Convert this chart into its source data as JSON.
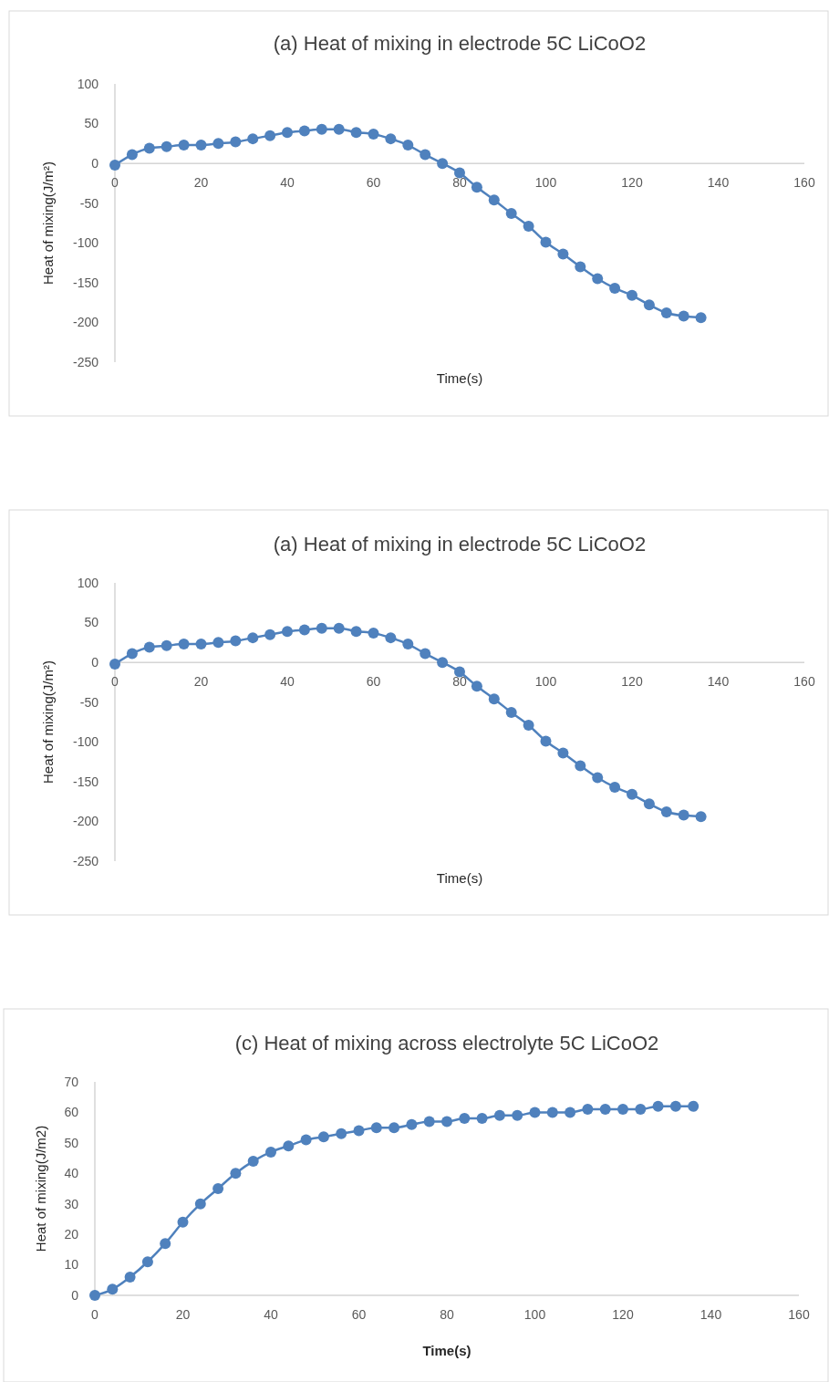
{
  "chart_data": [
    {
      "type": "line",
      "title": "(a) Heat of mixing in electrode 5C LiCoO2",
      "xlabel": "Time(s)",
      "ylabel": "Heat of mixing(J/m²)",
      "xlim": [
        0,
        160
      ],
      "xticks": [
        0,
        20,
        40,
        60,
        80,
        100,
        120,
        140,
        160
      ],
      "ylim": [
        -250,
        100
      ],
      "yticks": [
        -250,
        -200,
        -150,
        -100,
        -50,
        0,
        50,
        100
      ],
      "marker": "circle",
      "x": [
        0,
        4,
        8,
        12,
        16,
        20,
        24,
        28,
        32,
        36,
        40,
        44,
        48,
        52,
        56,
        60,
        64,
        68,
        72,
        76,
        80,
        84,
        88,
        92,
        96,
        100,
        104,
        108,
        112,
        116,
        120,
        124,
        128,
        132,
        136
      ],
      "series": [
        {
          "color": "#4f81bd",
          "values": [
            -2,
            11,
            19,
            21,
            23,
            23,
            25,
            27,
            31,
            35,
            39,
            41,
            43,
            43,
            39,
            37,
            31,
            23,
            11,
            0,
            -12,
            -30,
            -46,
            -63,
            -79,
            -99,
            -114,
            -130,
            -145,
            -157,
            -166,
            -178,
            -188,
            -192,
            -194
          ]
        }
      ]
    },
    {
      "type": "line",
      "title": "(a) Heat of mixing in electrode 5C LiCoO2",
      "xlabel": "Time(s)",
      "ylabel": "Heat of mixing(J/m²)",
      "xlim": [
        0,
        160
      ],
      "xticks": [
        0,
        20,
        40,
        60,
        80,
        100,
        120,
        140,
        160
      ],
      "ylim": [
        -250,
        100
      ],
      "yticks": [
        -250,
        -200,
        -150,
        -100,
        -50,
        0,
        50,
        100
      ],
      "marker": "circle",
      "x": [
        0,
        4,
        8,
        12,
        16,
        20,
        24,
        28,
        32,
        36,
        40,
        44,
        48,
        52,
        56,
        60,
        64,
        68,
        72,
        76,
        80,
        84,
        88,
        92,
        96,
        100,
        104,
        108,
        112,
        116,
        120,
        124,
        128,
        132,
        136
      ],
      "series": [
        {
          "color": "#4f81bd",
          "values": [
            -2,
            11,
            19,
            21,
            23,
            23,
            25,
            27,
            31,
            35,
            39,
            41,
            43,
            43,
            39,
            37,
            31,
            23,
            11,
            0,
            -12,
            -30,
            -46,
            -63,
            -79,
            -99,
            -114,
            -130,
            -145,
            -157,
            -166,
            -178,
            -188,
            -192,
            -194
          ]
        }
      ]
    },
    {
      "type": "line",
      "title": "(c) Heat of mixing across electrolyte 5C LiCoO2",
      "xlabel": "Time(s)",
      "ylabel": "Heat of mixing(J/m2)",
      "xlim": [
        0,
        160
      ],
      "xticks": [
        0,
        20,
        40,
        60,
        80,
        100,
        120,
        140,
        160
      ],
      "ylim": [
        0,
        70
      ],
      "yticks": [
        0,
        10,
        20,
        30,
        40,
        50,
        60,
        70
      ],
      "marker": "circle",
      "x": [
        0,
        4,
        8,
        12,
        16,
        20,
        24,
        28,
        32,
        36,
        40,
        44,
        48,
        52,
        56,
        60,
        64,
        68,
        72,
        76,
        80,
        84,
        88,
        92,
        96,
        100,
        104,
        108,
        112,
        116,
        120,
        124,
        128,
        132,
        136
      ],
      "series": [
        {
          "color": "#4f81bd",
          "values": [
            0,
            2,
            6,
            11,
            17,
            24,
            30,
            35,
            40,
            44,
            47,
            49,
            51,
            52,
            53,
            54,
            55,
            55,
            56,
            57,
            57,
            58,
            58,
            59,
            59,
            60,
            60,
            60,
            61,
            61,
            61,
            61,
            62,
            62,
            62
          ]
        }
      ]
    }
  ]
}
